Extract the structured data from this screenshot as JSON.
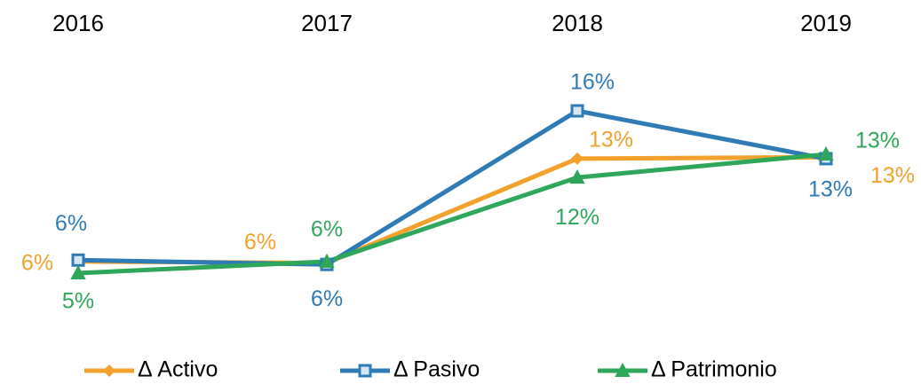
{
  "chart_data": {
    "type": "line",
    "categories": [
      "2016",
      "2017",
      "2018",
      "2019"
    ],
    "series": [
      {
        "name": "Δ Activo",
        "color": "#f2a12c",
        "marker": "diamond",
        "values": [
          5.8,
          5.7,
          12.9,
          13.0
        ],
        "value_labels": [
          "6%",
          "6%",
          "13%",
          "13%"
        ]
      },
      {
        "name": "Δ Pasivo",
        "color": "#2f7bb6",
        "marker": "square",
        "values": [
          5.9,
          5.6,
          16.2,
          12.9
        ],
        "value_labels": [
          "6%",
          "6%",
          "16%",
          "13%"
        ]
      },
      {
        "name": "Δ Patrimonio",
        "color": "#2fa75b",
        "marker": "triangle",
        "values": [
          5.0,
          5.8,
          11.6,
          13.2
        ],
        "value_labels": [
          "5%",
          "6%",
          "12%",
          "13%"
        ]
      }
    ],
    "legend": "bottom"
  }
}
